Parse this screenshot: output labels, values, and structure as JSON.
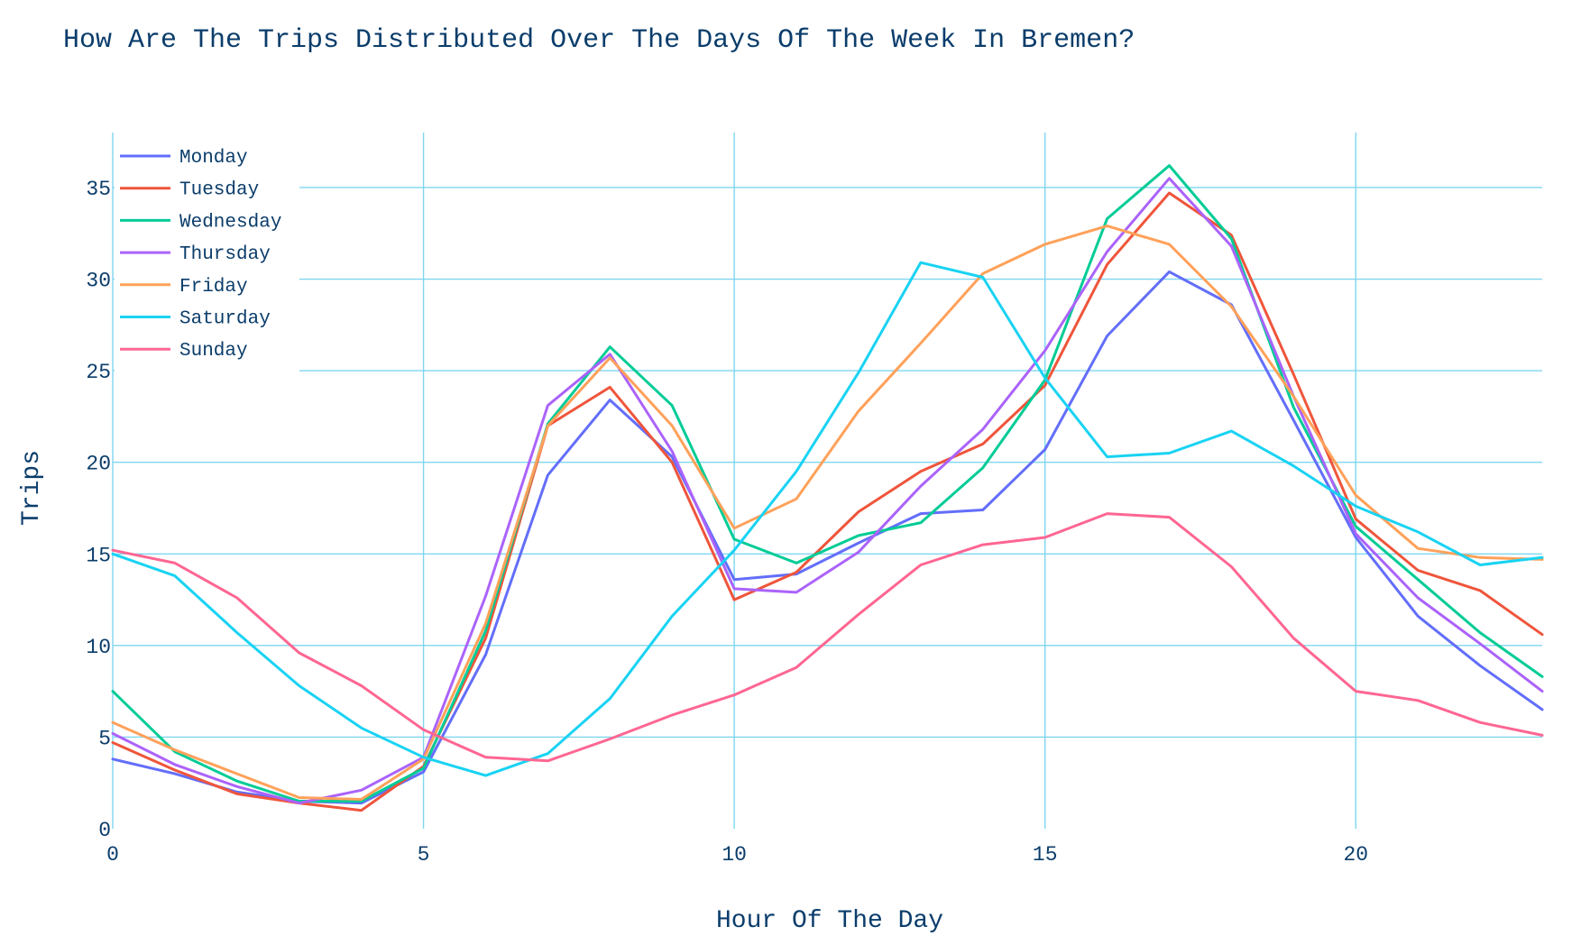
{
  "chart_data": {
    "type": "line",
    "title": "How Are The Trips Distributed Over The Days Of The Week In Bremen?",
    "xlabel": "Hour Of The Day",
    "ylabel": "Trips",
    "xlim": [
      0,
      23
    ],
    "ylim": [
      0,
      38
    ],
    "x_ticks": [
      0,
      5,
      10,
      15,
      20
    ],
    "y_ticks": [
      0,
      5,
      10,
      15,
      20,
      25,
      30,
      35
    ],
    "grid": true,
    "legend_position": "top-left",
    "x": [
      0,
      1,
      2,
      3,
      4,
      5,
      6,
      7,
      8,
      9,
      10,
      11,
      12,
      13,
      14,
      15,
      16,
      17,
      18,
      19,
      20,
      21,
      22,
      23
    ],
    "series": [
      {
        "name": "Monday",
        "color": "#636efa",
        "values": [
          3.8,
          3.0,
          2.0,
          1.5,
          1.4,
          3.1,
          9.5,
          19.3,
          23.4,
          20.3,
          13.6,
          13.9,
          15.6,
          17.2,
          17.4,
          20.7,
          26.9,
          30.4,
          28.6,
          22.3,
          15.9,
          11.6,
          8.9,
          6.5
        ]
      },
      {
        "name": "Tuesday",
        "color": "#ef553b",
        "values": [
          4.7,
          3.2,
          1.9,
          1.4,
          1.0,
          3.4,
          10.4,
          22.0,
          24.1,
          20.0,
          12.5,
          14.0,
          17.3,
          19.5,
          21.0,
          24.2,
          30.8,
          34.7,
          32.4,
          24.8,
          16.9,
          14.1,
          13.0,
          10.6
        ]
      },
      {
        "name": "Wednesday",
        "color": "#00cc96",
        "values": [
          7.5,
          4.2,
          2.6,
          1.5,
          1.5,
          3.3,
          10.8,
          22.1,
          26.3,
          23.1,
          15.8,
          14.5,
          16.0,
          16.7,
          19.7,
          24.5,
          33.3,
          36.2,
          32.2,
          23.0,
          16.5,
          13.6,
          10.7,
          8.3
        ]
      },
      {
        "name": "Thursday",
        "color": "#ab63fa",
        "values": [
          5.2,
          3.5,
          2.3,
          1.4,
          2.1,
          3.9,
          12.7,
          23.1,
          25.9,
          20.6,
          13.1,
          12.9,
          15.1,
          18.7,
          21.8,
          26.1,
          31.5,
          35.5,
          31.8,
          23.6,
          16.1,
          12.6,
          10.1,
          7.5
        ]
      },
      {
        "name": "Friday",
        "color": "#ffa15a",
        "values": [
          5.8,
          4.3,
          3.0,
          1.7,
          1.6,
          3.8,
          11.2,
          22.0,
          25.7,
          22.0,
          16.4,
          18.0,
          22.8,
          26.5,
          30.3,
          31.9,
          32.9,
          31.9,
          28.5,
          23.6,
          18.2,
          15.3,
          14.8,
          14.7
        ]
      },
      {
        "name": "Saturday",
        "color": "#19d3f3",
        "values": [
          15.0,
          13.8,
          10.7,
          7.8,
          5.5,
          3.9,
          2.9,
          4.1,
          7.1,
          11.6,
          15.2,
          19.5,
          24.9,
          30.9,
          30.1,
          24.6,
          20.3,
          20.5,
          21.7,
          19.8,
          17.6,
          16.2,
          14.4,
          14.8
        ]
      },
      {
        "name": "Sunday",
        "color": "#ff6692",
        "values": [
          15.2,
          14.5,
          12.6,
          9.6,
          7.8,
          5.4,
          3.9,
          3.7,
          4.9,
          6.2,
          7.3,
          8.8,
          11.7,
          14.4,
          15.5,
          15.9,
          17.2,
          17.0,
          14.3,
          10.4,
          7.5,
          7.0,
          5.8,
          5.1
        ]
      }
    ]
  }
}
